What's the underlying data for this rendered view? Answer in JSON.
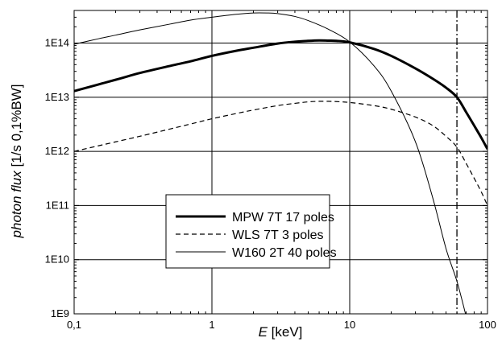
{
  "chart_data": {
    "type": "line",
    "title": "",
    "xlabel_italic": "E",
    "xlabel_rest": " [keV]",
    "ylabel_italic": "photon flux",
    "ylabel_rest": " [1/s 0,1%BW]",
    "xscale": "log",
    "yscale": "log",
    "xlim": [
      0.1,
      100
    ],
    "ylim": [
      1000000000.0,
      400000000000000.0
    ],
    "x_ticks": [
      0.1,
      1,
      10,
      100
    ],
    "x_tick_labels": [
      "0,1",
      "1",
      "10",
      "100"
    ],
    "y_ticks": [
      1000000000.0,
      10000000000.0,
      100000000000.0,
      1000000000000.0,
      10000000000000.0,
      100000000000000.0
    ],
    "y_tick_labels": [
      "1E9",
      "1E10",
      "1E11",
      "1E12",
      "1E13",
      "1E14"
    ],
    "grid": true,
    "vertical_dashdot_line_x": 60,
    "legend_position": "lower-center",
    "series": [
      {
        "name": "MPW 7T 17 poles",
        "style": "solid-thick",
        "x": [
          0.1,
          0.2,
          0.3,
          0.5,
          0.7,
          1,
          1.5,
          2,
          3,
          4,
          5,
          6,
          7,
          8,
          10,
          15,
          20,
          30,
          40,
          50,
          60,
          70,
          80,
          90,
          100
        ],
        "y": [
          13000000000000.0,
          21000000000000.0,
          28000000000000.0,
          38000000000000.0,
          46000000000000.0,
          58000000000000.0,
          72000000000000.0,
          82000000000000.0,
          98000000000000.0,
          106000000000000.0,
          110000000000000.0,
          112000000000000.0,
          111000000000000.0,
          110000000000000.0,
          103000000000000.0,
          78000000000000.0,
          58000000000000.0,
          34000000000000.0,
          22000000000000.0,
          15000000000000.0,
          10000000000000.0,
          5300000000000.0,
          3000000000000.0,
          1800000000000.0,
          1100000000000.0
        ]
      },
      {
        "name": "WLS 7T 3 poles",
        "style": "dashed",
        "x": [
          0.1,
          0.2,
          0.3,
          0.5,
          0.7,
          1,
          1.5,
          2,
          3,
          4,
          5,
          6,
          7,
          8,
          10,
          15,
          20,
          30,
          40,
          50,
          60,
          70,
          80,
          90,
          100
        ],
        "y": [
          1000000000000.0,
          1500000000000.0,
          1900000000000.0,
          2600000000000.0,
          3200000000000.0,
          4000000000000.0,
          5000000000000.0,
          5800000000000.0,
          7000000000000.0,
          7700000000000.0,
          8200000000000.0,
          8400000000000.0,
          8400000000000.0,
          8300000000000.0,
          8000000000000.0,
          7000000000000.0,
          6000000000000.0,
          4300000000000.0,
          3000000000000.0,
          1900000000000.0,
          1200000000000.0,
          600000000000.0,
          320000000000.0,
          180000000000.0,
          100000000000.0
        ]
      },
      {
        "name": "W160 2T 40 poles",
        "style": "solid-thin",
        "x": [
          0.1,
          0.15,
          0.2,
          0.3,
          0.5,
          0.7,
          1,
          1.5,
          2,
          2.5,
          3,
          4,
          5,
          7,
          10,
          15,
          20,
          30,
          40,
          50,
          60,
          70
        ],
        "y": [
          95000000000000.0,
          120000000000000.0,
          140000000000000.0,
          175000000000000.0,
          225000000000000.0,
          265000000000000.0,
          300000000000000.0,
          340000000000000.0,
          360000000000000.0,
          360000000000000.0,
          350000000000000.0,
          310000000000000.0,
          260000000000000.0,
          180000000000000.0,
          105000000000000.0,
          38000000000000.0,
          13000000000000.0,
          1500000000000.0,
          140000000000.0,
          16000000000.0,
          4000000000.0,
          900000000.0
        ]
      }
    ]
  }
}
